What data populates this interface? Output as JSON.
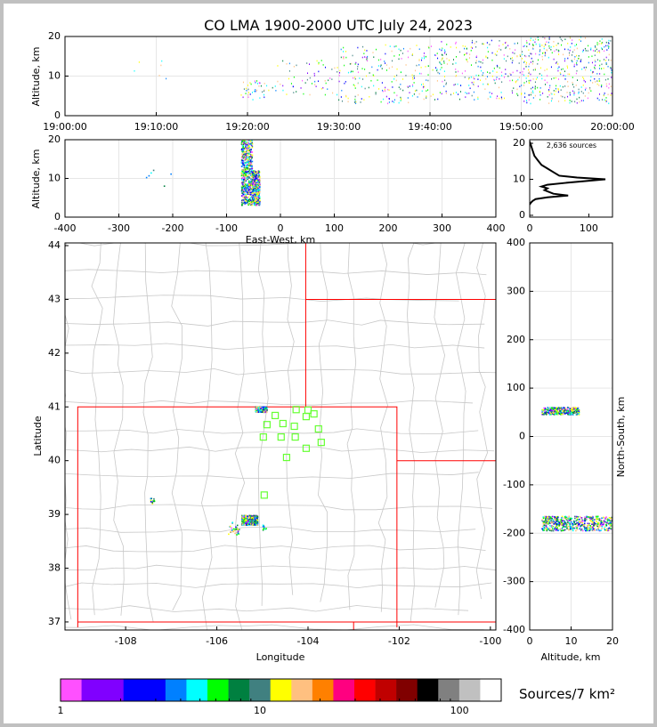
{
  "chart_data": [
    {
      "id": "time-altitude",
      "type": "scatter",
      "title": "CO LMA 1900-2000 UTC July 24, 2023",
      "xlabel": "",
      "ylabel": "Altitude, km",
      "xlim_minutes_after_1900": [
        0,
        60
      ],
      "ylim": [
        0,
        20
      ],
      "xtick_labels": [
        "19:00:00",
        "19:10:00",
        "19:20:00",
        "19:30:00",
        "19:40:00",
        "19:50:00",
        "20:00:00"
      ],
      "ytick_labels": [
        "0",
        "10",
        "20"
      ],
      "source_clusters": [
        {
          "t_range": [
            7,
            12
          ],
          "alt_range": [
            8,
            15
          ],
          "n": 6
        },
        {
          "t_range": [
            19,
            23
          ],
          "alt_range": [
            4,
            9
          ],
          "n": 40
        },
        {
          "t_range": [
            23,
            30
          ],
          "alt_range": [
            5,
            14
          ],
          "n": 60
        },
        {
          "t_range": [
            30,
            40
          ],
          "alt_range": [
            3,
            18
          ],
          "n": 220
        },
        {
          "t_range": [
            40,
            50
          ],
          "alt_range": [
            4,
            19
          ],
          "n": 250
        },
        {
          "t_range": [
            50,
            60
          ],
          "alt_range": [
            3,
            20
          ],
          "n": 420
        }
      ]
    },
    {
      "id": "eastwest-altitude",
      "type": "scatter",
      "xlabel": "East-West, km",
      "ylabel": "Altitude, km",
      "xlim": [
        -400,
        400
      ],
      "ylim": [
        0,
        20
      ],
      "xtick_labels": [
        "-400",
        "-300",
        "-200",
        "-100",
        "0",
        "100",
        "200",
        "300",
        "400"
      ],
      "ytick_labels": [
        "0",
        "10",
        "20"
      ],
      "source_clusters": [
        {
          "x_range": [
            -72,
            -52
          ],
          "alt_range": [
            3,
            20
          ],
          "n": 500
        },
        {
          "x_range": [
            -52,
            -38
          ],
          "alt_range": [
            3,
            12
          ],
          "n": 350
        },
        {
          "x_range": [
            -250,
            -200
          ],
          "alt_range": [
            8,
            15
          ],
          "n": 6
        }
      ]
    },
    {
      "id": "altitude-histogram",
      "type": "line",
      "annotation": "2,636 sources",
      "xlim": [
        0,
        140
      ],
      "ylim": [
        -0.5,
        21
      ],
      "xtick_labels": [
        "0",
        "100"
      ],
      "ytick_labels": [
        "0",
        "10",
        "20"
      ],
      "x": [
        0,
        2,
        5,
        10,
        30,
        65,
        40,
        25,
        30,
        20,
        30,
        60,
        128,
        80,
        50,
        40,
        30,
        20,
        15,
        8,
        5,
        2,
        0
      ],
      "y": [
        3,
        3.5,
        4,
        4.5,
        5,
        5.5,
        6,
        7,
        7.5,
        8,
        8.5,
        9,
        10,
        10.5,
        11,
        12,
        13,
        14,
        15,
        16.5,
        18,
        19.5,
        20.5
      ]
    },
    {
      "id": "plan-view-map",
      "type": "scatter",
      "xlabel": "Longitude",
      "ylabel": "Latitude",
      "xlim": [
        -109.33,
        -99.88
      ],
      "ylim": [
        36.85,
        44.05
      ],
      "xtick_labels": [
        "-108",
        "-106",
        "-104",
        "-102",
        "-100"
      ],
      "ytick_labels": [
        "37",
        "38",
        "39",
        "40",
        "41",
        "42",
        "43",
        "44"
      ],
      "stations": [
        [
          -104.72,
          40.84
        ],
        [
          -104.0,
          40.94
        ],
        [
          -104.26,
          40.95
        ],
        [
          -103.87,
          40.87
        ],
        [
          -104.04,
          40.82
        ],
        [
          -104.9,
          40.67
        ],
        [
          -104.55,
          40.69
        ],
        [
          -104.3,
          40.64
        ],
        [
          -104.98,
          40.44
        ],
        [
          -104.59,
          40.44
        ],
        [
          -104.28,
          40.44
        ],
        [
          -103.77,
          40.59
        ],
        [
          -103.71,
          40.34
        ],
        [
          -104.04,
          40.23
        ],
        [
          -104.47,
          40.06
        ],
        [
          -104.96,
          39.36
        ]
      ],
      "source_clusters": [
        {
          "lon_range": [
            -105.15,
            -104.9
          ],
          "lat_range": [
            40.9,
            41.0
          ],
          "n": 300
        },
        {
          "lon_range": [
            -105.45,
            -105.1
          ],
          "lat_range": [
            38.8,
            38.98
          ],
          "n": 450
        },
        {
          "lon_range": [
            -105.75,
            -105.5
          ],
          "lat_range": [
            38.62,
            38.85
          ],
          "n": 30
        },
        {
          "lon_range": [
            -107.45,
            -107.35
          ],
          "lat_range": [
            39.2,
            39.3
          ],
          "n": 12
        },
        {
          "lon_range": [
            -105.0,
            -104.9
          ],
          "lat_range": [
            38.7,
            38.8
          ],
          "n": 10
        }
      ]
    },
    {
      "id": "altitude-northsouth",
      "type": "scatter",
      "xlabel": "Altitude, km",
      "ylabel": "North-South, km",
      "xlim": [
        0,
        20
      ],
      "ylim": [
        -400,
        400
      ],
      "xtick_labels": [
        "0",
        "10",
        "20"
      ],
      "ytick_labels": [
        "-400",
        "-300",
        "-200",
        "-100",
        "0",
        "100",
        "200",
        "300",
        "400"
      ],
      "source_clusters": [
        {
          "alt_range": [
            3,
            12
          ],
          "ns_range": [
            45,
            60
          ],
          "n": 350
        },
        {
          "alt_range": [
            3,
            20
          ],
          "ns_range": [
            -195,
            -165
          ],
          "n": 550
        }
      ]
    }
  ],
  "colorbar": {
    "label": "Sources/7 km²",
    "tick_labels": [
      "1",
      "10",
      "100"
    ],
    "colors": [
      "#ff50ff",
      "#8000ff",
      "#0000ff",
      "#0080ff",
      "#00ffff",
      "#00ff00",
      "#008040",
      "#408080",
      "#ffff00",
      "#ffc080",
      "#ff8000",
      "#ff0080",
      "#ff0000",
      "#c00000",
      "#800000",
      "#000000",
      "#808080",
      "#c0c0c0",
      "#ffffff"
    ],
    "widths": [
      1,
      2,
      2,
      1,
      1,
      1,
      1,
      1,
      1,
      1,
      1,
      1,
      1,
      1,
      1,
      1,
      1,
      1,
      1
    ]
  }
}
